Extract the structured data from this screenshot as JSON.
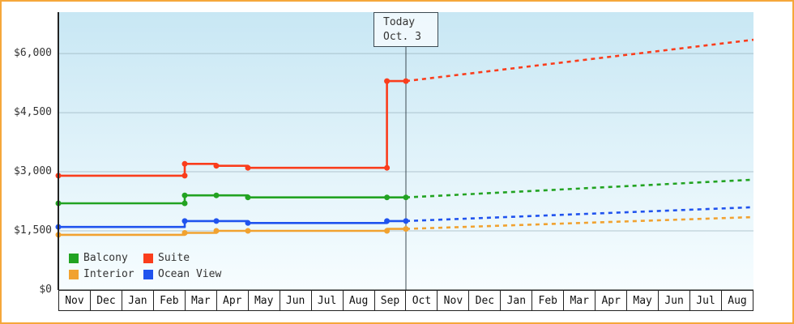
{
  "colors": {
    "frame_border": "#f5a73b",
    "plot_bg_top": "#c8e7f4",
    "plot_bg_bottom": "#f7fdff",
    "grid": "#8fa6b2",
    "axis": "#222222",
    "today_line": "#3c4a52"
  },
  "chart_data": {
    "type": "line",
    "title": "",
    "grid": true,
    "legend_position": "bottom-left",
    "x_labels": [
      "Nov",
      "Dec",
      "Jan",
      "Feb",
      "Mar",
      "Apr",
      "May",
      "Jun",
      "Jul",
      "Aug",
      "Sep",
      "Oct",
      "Nov",
      "Dec",
      "Jan",
      "Feb",
      "Mar",
      "Apr",
      "May",
      "Jun",
      "Jul",
      "Aug"
    ],
    "y_ticks": [
      {
        "value": 6000,
        "label": "$6,000"
      },
      {
        "value": 4500,
        "label": "$4,500"
      },
      {
        "value": 3000,
        "label": "$3,000"
      },
      {
        "value": 1500,
        "label": "$1,500"
      },
      {
        "value": 0,
        "label": "$0"
      }
    ],
    "ylim": [
      0,
      7050
    ],
    "today": {
      "line1": "Today",
      "line2": "Oct. 3",
      "month_index": 11
    },
    "series": [
      {
        "name": "Balcony",
        "color": "#22a322",
        "solid": [
          [
            0,
            2200
          ],
          [
            4,
            2200
          ],
          [
            4,
            2400
          ],
          [
            6,
            2400
          ],
          [
            6,
            2350
          ],
          [
            11,
            2350
          ]
        ],
        "markers": [
          [
            0,
            2200
          ],
          [
            4,
            2200
          ],
          [
            4,
            2400
          ],
          [
            5,
            2400
          ],
          [
            6,
            2350
          ],
          [
            10.4,
            2350
          ],
          [
            11,
            2350
          ]
        ],
        "projection": [
          [
            11,
            2350
          ],
          [
            22,
            2800
          ]
        ]
      },
      {
        "name": "Suite",
        "color": "#fa3d1c",
        "solid": [
          [
            0,
            2900
          ],
          [
            4,
            2900
          ],
          [
            4,
            3200
          ],
          [
            5,
            3200
          ],
          [
            5,
            3150
          ],
          [
            6,
            3150
          ],
          [
            6,
            3100
          ],
          [
            10.4,
            3100
          ],
          [
            10.4,
            5300
          ],
          [
            11,
            5300
          ]
        ],
        "markers": [
          [
            0,
            2900
          ],
          [
            4,
            2900
          ],
          [
            4,
            3200
          ],
          [
            5,
            3150
          ],
          [
            6,
            3100
          ],
          [
            10.4,
            3100
          ],
          [
            10.4,
            5300
          ],
          [
            11,
            5300
          ]
        ],
        "projection": [
          [
            11,
            5300
          ],
          [
            22,
            6350
          ]
        ]
      },
      {
        "name": "Interior",
        "color": "#f1a230",
        "solid": [
          [
            0,
            1400
          ],
          [
            4,
            1400
          ],
          [
            4,
            1450
          ],
          [
            5,
            1450
          ],
          [
            5,
            1500
          ],
          [
            10.4,
            1500
          ],
          [
            10.4,
            1550
          ],
          [
            11,
            1550
          ]
        ],
        "markers": [
          [
            0,
            1400
          ],
          [
            4,
            1450
          ],
          [
            5,
            1500
          ],
          [
            6,
            1500
          ],
          [
            10.4,
            1500
          ],
          [
            11,
            1550
          ]
        ],
        "projection": [
          [
            11,
            1550
          ],
          [
            22,
            1850
          ]
        ]
      },
      {
        "name": "Ocean View",
        "color": "#2053ee",
        "solid": [
          [
            0,
            1600
          ],
          [
            4,
            1600
          ],
          [
            4,
            1750
          ],
          [
            6,
            1750
          ],
          [
            6,
            1700
          ],
          [
            10.4,
            1700
          ],
          [
            10.4,
            1750
          ],
          [
            11,
            1750
          ]
        ],
        "markers": [
          [
            0,
            1600
          ],
          [
            4,
            1750
          ],
          [
            5,
            1750
          ],
          [
            6,
            1700
          ],
          [
            10.4,
            1750
          ],
          [
            11,
            1750
          ]
        ],
        "projection": [
          [
            11,
            1750
          ],
          [
            22,
            2100
          ]
        ]
      }
    ]
  }
}
